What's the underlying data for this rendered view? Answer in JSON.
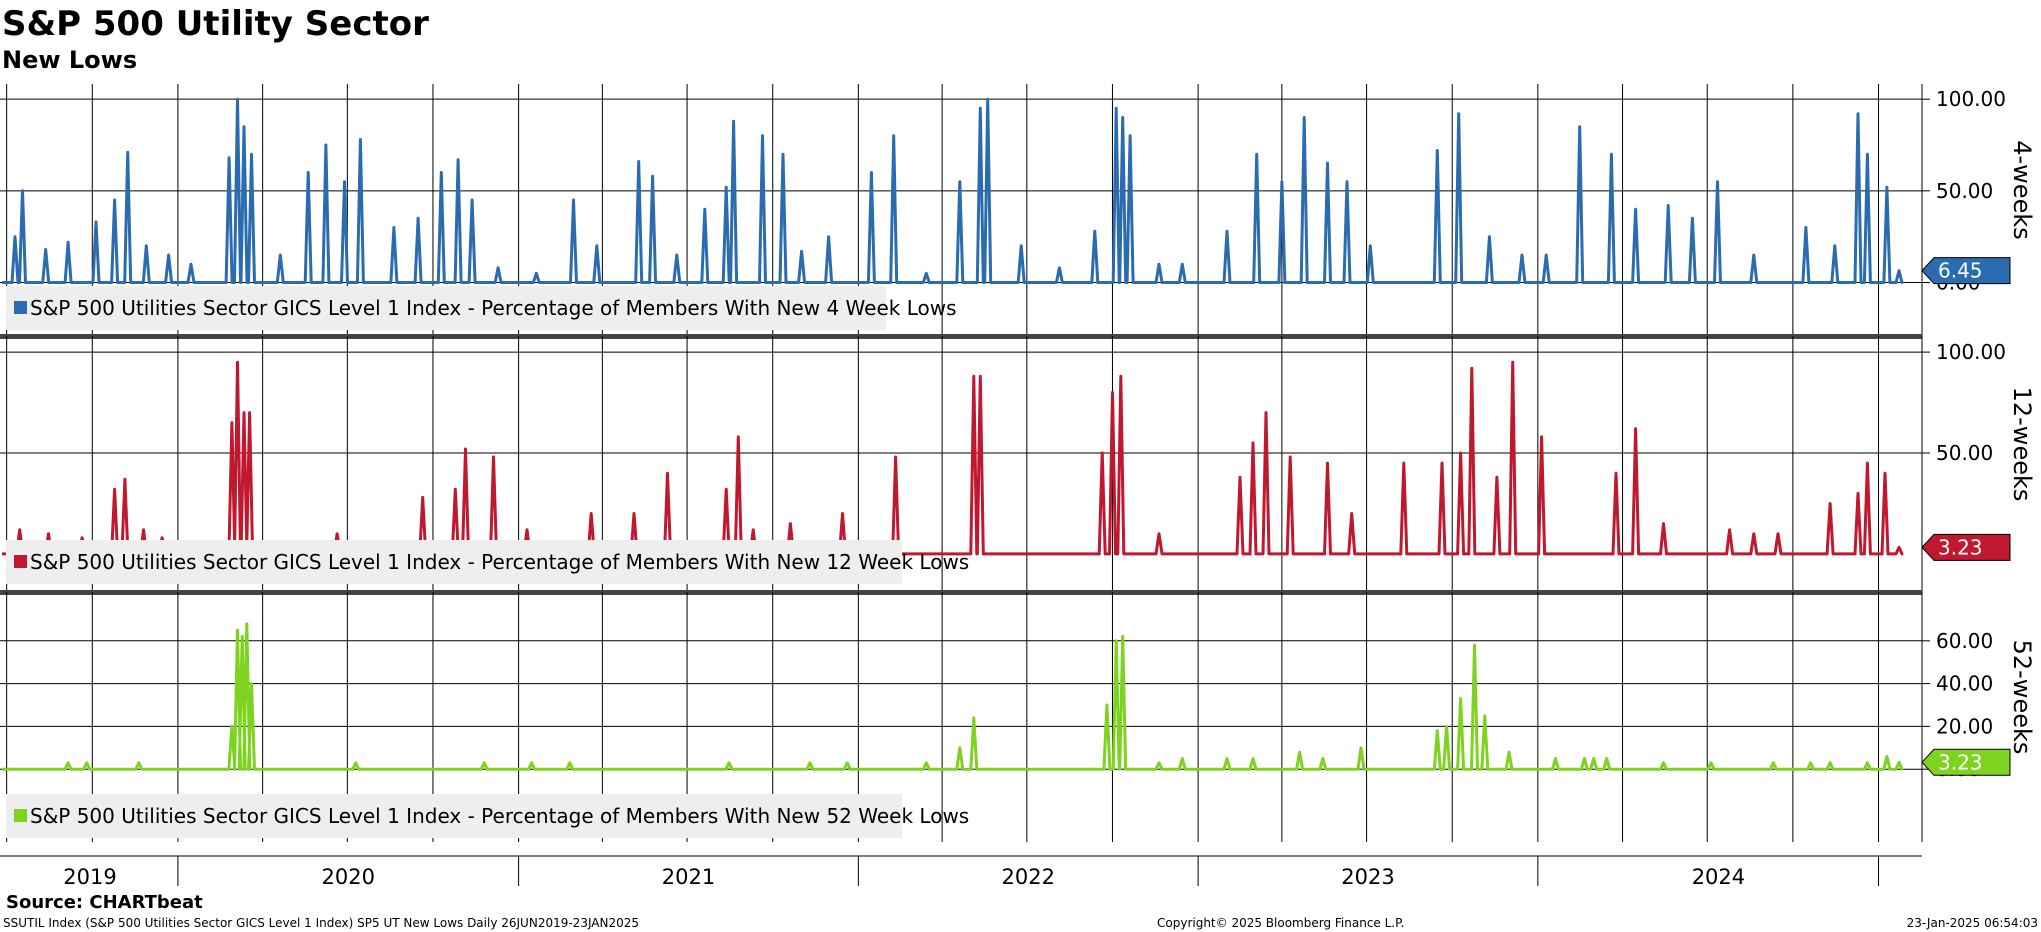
{
  "header": {
    "title": "S&P 500 Utility Sector",
    "subtitle": "New Lows"
  },
  "source": "Source: CHARTbeat",
  "footer": {
    "left": "SSUTIL Index (S&P 500 Utilities Sector GICS Level 1 Index) SP5 UT New Lows  Daily 26JUN2019-23JAN2025",
    "center": "Copyright© 2025 Bloomberg Finance L.P.",
    "right": "23-Jan-2025 06:54:03"
  },
  "colors": {
    "panel1": "#2b6cb0",
    "panel2": "#c0182f",
    "panel3": "#7ed321",
    "grid": "#000000",
    "divider": "#444444"
  },
  "chart_data": {
    "type": "line",
    "x_range": [
      "2019-06-26",
      "2025-01-23"
    ],
    "x_tick_labels": [
      "2019",
      "2020",
      "2021",
      "2022",
      "2023",
      "2024"
    ],
    "panels": [
      {
        "side_label": "4-weeks",
        "ylim": [
          -15,
          105
        ],
        "y_ticks": [
          "100.00",
          "50.00",
          "0.00"
        ],
        "y_tick_values": [
          100,
          50,
          0
        ],
        "legend": "S&P 500 Utilities Sector GICS Level 1 Index - Percentage of Members With New 4 Week Lows",
        "last_value": "6.45",
        "color": "#2b6cb0",
        "peaks": [
          [
            "2019-07-10",
            25
          ],
          [
            "2019-07-18",
            50
          ],
          [
            "2019-08-12",
            18
          ],
          [
            "2019-09-05",
            22
          ],
          [
            "2019-10-05",
            33
          ],
          [
            "2019-10-25",
            45
          ],
          [
            "2019-11-08",
            71
          ],
          [
            "2019-11-28",
            20
          ],
          [
            "2019-12-22",
            15
          ],
          [
            "2020-01-15",
            10
          ],
          [
            "2020-02-25",
            68
          ],
          [
            "2020-03-05",
            100
          ],
          [
            "2020-03-12",
            85
          ],
          [
            "2020-03-20",
            70
          ],
          [
            "2020-04-20",
            15
          ],
          [
            "2020-05-20",
            60
          ],
          [
            "2020-06-08",
            75
          ],
          [
            "2020-06-28",
            55
          ],
          [
            "2020-07-15",
            78
          ],
          [
            "2020-08-20",
            30
          ],
          [
            "2020-09-15",
            35
          ],
          [
            "2020-10-10",
            60
          ],
          [
            "2020-10-28",
            67
          ],
          [
            "2020-11-12",
            45
          ],
          [
            "2020-12-10",
            8
          ],
          [
            "2021-01-20",
            5
          ],
          [
            "2021-03-01",
            45
          ],
          [
            "2021-03-26",
            20
          ],
          [
            "2021-05-10",
            66
          ],
          [
            "2021-05-25",
            58
          ],
          [
            "2021-06-20",
            15
          ],
          [
            "2021-07-20",
            40
          ],
          [
            "2021-08-12",
            52
          ],
          [
            "2021-08-20",
            88
          ],
          [
            "2021-09-20",
            80
          ],
          [
            "2021-10-12",
            70
          ],
          [
            "2021-11-01",
            17
          ],
          [
            "2021-11-30",
            25
          ],
          [
            "2022-01-15",
            60
          ],
          [
            "2022-02-08",
            80
          ],
          [
            "2022-03-15",
            5
          ],
          [
            "2022-04-20",
            55
          ],
          [
            "2022-05-12",
            95
          ],
          [
            "2022-05-20",
            100
          ],
          [
            "2022-06-25",
            20
          ],
          [
            "2022-08-05",
            8
          ],
          [
            "2022-09-12",
            28
          ],
          [
            "2022-10-05",
            95
          ],
          [
            "2022-10-12",
            90
          ],
          [
            "2022-10-20",
            80
          ],
          [
            "2022-11-20",
            10
          ],
          [
            "2022-12-15",
            10
          ],
          [
            "2023-02-01",
            28
          ],
          [
            "2023-03-05",
            70
          ],
          [
            "2023-04-01",
            55
          ],
          [
            "2023-04-25",
            90
          ],
          [
            "2023-05-20",
            65
          ],
          [
            "2023-06-10",
            55
          ],
          [
            "2023-07-05",
            20
          ],
          [
            "2023-09-15",
            72
          ],
          [
            "2023-10-08",
            92
          ],
          [
            "2023-11-10",
            25
          ],
          [
            "2023-12-15",
            15
          ],
          [
            "2024-01-10",
            15
          ],
          [
            "2024-02-15",
            85
          ],
          [
            "2024-03-20",
            70
          ],
          [
            "2024-04-15",
            40
          ],
          [
            "2024-05-20",
            42
          ],
          [
            "2024-06-15",
            35
          ],
          [
            "2024-07-12",
            55
          ],
          [
            "2024-08-20",
            15
          ],
          [
            "2024-10-15",
            30
          ],
          [
            "2024-11-15",
            20
          ],
          [
            "2024-12-10",
            92
          ],
          [
            "2024-12-20",
            70
          ],
          [
            "2025-01-10",
            52
          ],
          [
            "2025-01-23",
            6.45
          ]
        ]
      },
      {
        "side_label": "12-weeks",
        "ylim": [
          -5,
          105
        ],
        "y_ticks": [
          "100.00",
          "50.00"
        ],
        "y_tick_values": [
          100,
          50
        ],
        "legend": "S&P 500 Utilities Sector GICS Level 1 Index - Percentage of Members With New 12 Week Lows",
        "last_value": "3.23",
        "color": "#c0182f",
        "peaks": [
          [
            "2019-07-15",
            12
          ],
          [
            "2019-08-15",
            10
          ],
          [
            "2019-09-20",
            8
          ],
          [
            "2019-10-25",
            32
          ],
          [
            "2019-11-05",
            37
          ],
          [
            "2019-11-25",
            12
          ],
          [
            "2019-12-15",
            8
          ],
          [
            "2020-02-28",
            65
          ],
          [
            "2020-03-05",
            95
          ],
          [
            "2020-03-12",
            70
          ],
          [
            "2020-03-18",
            70
          ],
          [
            "2020-06-20",
            10
          ],
          [
            "2020-09-20",
            28
          ],
          [
            "2020-10-25",
            32
          ],
          [
            "2020-11-05",
            52
          ],
          [
            "2020-12-05",
            48
          ],
          [
            "2021-01-10",
            12
          ],
          [
            "2021-03-20",
            20
          ],
          [
            "2021-05-05",
            20
          ],
          [
            "2021-06-10",
            40
          ],
          [
            "2021-08-12",
            32
          ],
          [
            "2021-08-25",
            58
          ],
          [
            "2021-09-10",
            12
          ],
          [
            "2021-10-20",
            15
          ],
          [
            "2021-12-15",
            20
          ],
          [
            "2022-02-10",
            48
          ],
          [
            "2022-05-05",
            88
          ],
          [
            "2022-05-12",
            88
          ],
          [
            "2022-09-20",
            50
          ],
          [
            "2022-10-01",
            80
          ],
          [
            "2022-10-10",
            88
          ],
          [
            "2022-11-20",
            10
          ],
          [
            "2023-02-15",
            38
          ],
          [
            "2023-03-01",
            55
          ],
          [
            "2023-03-15",
            70
          ],
          [
            "2023-04-10",
            48
          ],
          [
            "2023-05-20",
            45
          ],
          [
            "2023-06-15",
            20
          ],
          [
            "2023-08-10",
            45
          ],
          [
            "2023-09-20",
            45
          ],
          [
            "2023-10-10",
            50
          ],
          [
            "2023-10-22",
            92
          ],
          [
            "2023-11-18",
            38
          ],
          [
            "2023-12-05",
            95
          ],
          [
            "2024-01-05",
            58
          ],
          [
            "2024-03-25",
            40
          ],
          [
            "2024-04-15",
            62
          ],
          [
            "2024-05-15",
            15
          ],
          [
            "2024-07-25",
            12
          ],
          [
            "2024-08-20",
            10
          ],
          [
            "2024-09-15",
            10
          ],
          [
            "2024-11-10",
            25
          ],
          [
            "2024-12-10",
            30
          ],
          [
            "2024-12-20",
            45
          ],
          [
            "2025-01-08",
            40
          ],
          [
            "2025-01-23",
            3.23
          ]
        ]
      },
      {
        "side_label": "52-weeks",
        "ylim": [
          -20,
          80
        ],
        "y_ticks": [
          "60.00",
          "40.00",
          "20.00",
          "0.00"
        ],
        "y_tick_values": [
          60,
          40,
          20,
          0
        ],
        "legend": "S&P 500 Utilities Sector GICS Level 1 Index - Percentage of Members With New 52 Week Lows",
        "last_value": "3.23",
        "color": "#7ed321",
        "peaks": [
          [
            "2019-09-05",
            3
          ],
          [
            "2019-09-25",
            3
          ],
          [
            "2019-11-20",
            3
          ],
          [
            "2020-02-28",
            20
          ],
          [
            "2020-03-05",
            65
          ],
          [
            "2020-03-10",
            62
          ],
          [
            "2020-03-15",
            68
          ],
          [
            "2020-03-20",
            40
          ],
          [
            "2020-07-10",
            3
          ],
          [
            "2020-11-25",
            3
          ],
          [
            "2021-01-15",
            3
          ],
          [
            "2021-02-25",
            3
          ],
          [
            "2021-08-15",
            3
          ],
          [
            "2021-11-10",
            3
          ],
          [
            "2021-12-20",
            3
          ],
          [
            "2022-03-15",
            3
          ],
          [
            "2022-04-20",
            10
          ],
          [
            "2022-05-05",
            24
          ],
          [
            "2022-09-25",
            30
          ],
          [
            "2022-10-05",
            60
          ],
          [
            "2022-10-12",
            62
          ],
          [
            "2022-11-20",
            3
          ],
          [
            "2022-12-15",
            5
          ],
          [
            "2023-02-01",
            5
          ],
          [
            "2023-03-01",
            5
          ],
          [
            "2023-04-20",
            8
          ],
          [
            "2023-05-15",
            5
          ],
          [
            "2023-06-25",
            10
          ],
          [
            "2023-09-15",
            18
          ],
          [
            "2023-09-25",
            20
          ],
          [
            "2023-10-10",
            33
          ],
          [
            "2023-10-25",
            58
          ],
          [
            "2023-11-05",
            25
          ],
          [
            "2023-12-01",
            8
          ],
          [
            "2024-01-20",
            5
          ],
          [
            "2024-02-20",
            5
          ],
          [
            "2024-03-01",
            5
          ],
          [
            "2024-03-15",
            5
          ],
          [
            "2024-05-15",
            3
          ],
          [
            "2024-07-05",
            3
          ],
          [
            "2024-09-10",
            3
          ],
          [
            "2024-10-20",
            3
          ],
          [
            "2024-11-10",
            3
          ],
          [
            "2024-12-20",
            3
          ],
          [
            "2025-01-10",
            6
          ],
          [
            "2025-01-23",
            3.23
          ]
        ]
      }
    ]
  }
}
